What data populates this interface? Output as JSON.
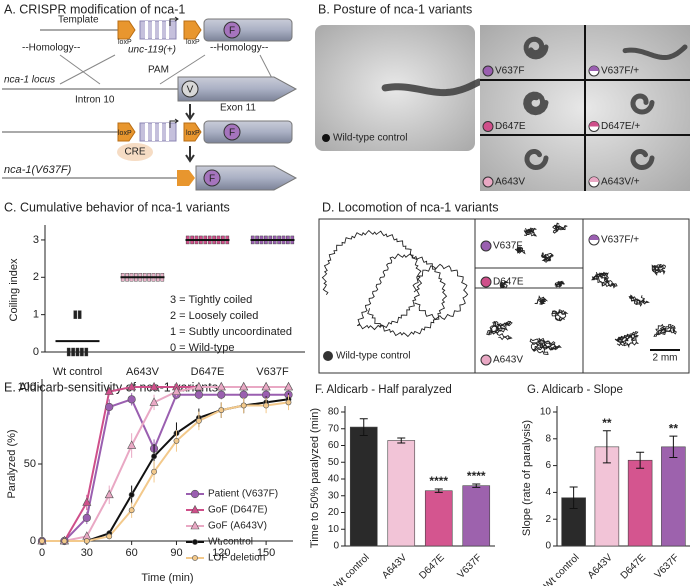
{
  "panel_a": {
    "title": "A. CRISPR modification of nca-1",
    "template": "Template",
    "loxp": "loxP",
    "unc119": "unc-119(+)",
    "homology": "--Homology--",
    "pam": "PAM",
    "locus": "nca-1 locus",
    "intron": "Intron 10",
    "exon": "Exon 11",
    "f": "F",
    "v": "V",
    "cre": "CRE",
    "allele": "nca-1(V637F)"
  },
  "panel_b": {
    "title": "B. Posture of nca-1 variants",
    "wild": "Wild-type control",
    "labels": [
      "V637F",
      "V637F/+",
      "D647E",
      "D647E/+",
      "A643V",
      "A643V/+"
    ]
  },
  "panel_d": {
    "title": "D. Locomotion of nca-1 variants",
    "wild": "Wild-type control",
    "labels": [
      "V637F",
      "D647E",
      "A643V",
      "V637F/+"
    ],
    "scale": "2 mm"
  },
  "chart_data": [
    {
      "type": "strip",
      "title": "C. Cumulative behavior of nca-1 variants",
      "y_label": "Coiling index",
      "categories": [
        "Wt control",
        "A643V",
        "D647E",
        "V637F"
      ],
      "points": [
        [
          0,
          0,
          0,
          0,
          0,
          1,
          1
        ],
        [
          2,
          2,
          2,
          2,
          2,
          2,
          2,
          2,
          2,
          2
        ],
        [
          3,
          3,
          3,
          3,
          3,
          3,
          3,
          3,
          3,
          3
        ],
        [
          3,
          3,
          3,
          3,
          3,
          3,
          3,
          3,
          3,
          3
        ]
      ],
      "means": [
        0.29,
        2,
        3,
        3
      ],
      "colors": [
        "#222222",
        "#e9b3c8",
        "#cf4f8a",
        "#9a5fb0"
      ],
      "ylim": [
        0,
        3.4
      ],
      "yticks": [
        0,
        1,
        2,
        3
      ],
      "legend": [
        "3 = Tightly coiled",
        "2 = Loosely coiled",
        "1 = Subtly uncoordinated",
        "0 = Wild-type"
      ]
    },
    {
      "type": "line",
      "title": "E. Aldicarb-sensitivity of nca-1 variants",
      "x_label": "Time (min)",
      "y_label": "Paralyzed (%)",
      "x": [
        0,
        15,
        30,
        45,
        60,
        75,
        90,
        105,
        120,
        135,
        150,
        165
      ],
      "xlim": [
        0,
        168
      ],
      "ylim": [
        0,
        100
      ],
      "xticks": [
        0,
        30,
        60,
        90,
        120,
        150
      ],
      "yticks": [
        0,
        50,
        100
      ],
      "series": [
        {
          "name": "Patient (V637F)",
          "color": "#9a5fb0",
          "marker": "circle",
          "values": [
            0,
            0,
            15,
            87,
            92,
            60,
            95,
            95,
            95,
            95,
            95,
            95
          ],
          "errors": [
            0,
            0,
            4,
            5,
            4,
            6,
            3,
            3,
            3,
            3,
            3,
            3
          ]
        },
        {
          "name": "GoF (D647E)",
          "color": "#cf4f8a",
          "marker": "triangle",
          "values": [
            0,
            0,
            25,
            97,
            100,
            100,
            100,
            100,
            100,
            100,
            100,
            100
          ],
          "errors": [
            0,
            0,
            5,
            2,
            0,
            0,
            0,
            0,
            0,
            0,
            0,
            0
          ]
        },
        {
          "name": "GoF (A643V)",
          "color": "#e9a8c4",
          "marker": "triangle",
          "values": [
            0,
            0,
            3,
            30,
            62,
            90,
            97,
            100,
            100,
            100,
            100,
            100
          ],
          "errors": [
            0,
            0,
            2,
            6,
            8,
            5,
            3,
            0,
            0,
            0,
            0,
            0
          ]
        },
        {
          "name": "Wt  control",
          "color": "#111111",
          "marker": "dot",
          "values": [
            0,
            0,
            0,
            5,
            30,
            55,
            70,
            80,
            85,
            88,
            90,
            92
          ],
          "errors": [
            0,
            0,
            0,
            2,
            6,
            8,
            7,
            6,
            5,
            5,
            4,
            4
          ]
        },
        {
          "name": "LOF deletion",
          "color": "#f3c98b",
          "marker": "dot",
          "values": [
            0,
            0,
            0,
            3,
            20,
            45,
            65,
            78,
            85,
            88,
            88,
            90
          ],
          "errors": [
            0,
            0,
            0,
            2,
            5,
            7,
            7,
            6,
            5,
            5,
            5,
            5
          ]
        }
      ]
    },
    {
      "type": "bar",
      "title": "F. Aldicarb - Half paralyzed",
      "y_label": "Time to 50% paralyzed (min)",
      "categories": [
        "Wt control",
        "A643V",
        "D647E",
        "V637F"
      ],
      "values": [
        71,
        63,
        33,
        36
      ],
      "errors": [
        5,
        1.5,
        1,
        1
      ],
      "colors": [
        "#2a2a2a",
        "#f2c4d7",
        "#d4558f",
        "#9d62ad"
      ],
      "annotations": [
        null,
        null,
        "****",
        "****"
      ],
      "ylim": [
        0,
        80
      ],
      "yticks": [
        0,
        10,
        20,
        30,
        40,
        50,
        60,
        70,
        80
      ]
    },
    {
      "type": "bar",
      "title": "G. Aldicarb - Slope",
      "y_label": "Slope (rate of paralysis)",
      "categories": [
        "Wt control",
        "A643V",
        "D647E",
        "V637F"
      ],
      "values": [
        3.6,
        7.4,
        6.4,
        7.4
      ],
      "errors": [
        0.8,
        1.2,
        0.6,
        0.8
      ],
      "colors": [
        "#2a2a2a",
        "#f2c4d7",
        "#d4558f",
        "#9d62ad"
      ],
      "annotations": [
        null,
        "**",
        null,
        "**"
      ],
      "ylim": [
        0,
        10
      ],
      "yticks": [
        0,
        2,
        4,
        6,
        8,
        10
      ]
    }
  ]
}
